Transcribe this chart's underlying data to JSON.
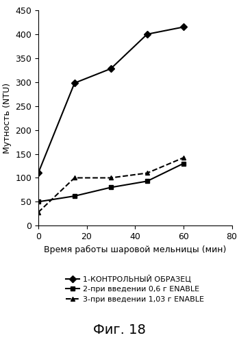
{
  "series": [
    {
      "label": "1-КОНТРОЛЬНЫЙ ОБРАЗЕЦ",
      "x": [
        0,
        15,
        30,
        45,
        60
      ],
      "y": [
        110,
        298,
        328,
        400,
        415
      ],
      "color": "#000000",
      "linestyle": "-",
      "marker": "D",
      "markersize": 5,
      "markerfacecolor": "#000000",
      "linewidth": 1.5
    },
    {
      "label": "2-при введении 0,6 г ENABLE",
      "x": [
        0,
        15,
        30,
        45,
        60
      ],
      "y": [
        50,
        62,
        80,
        93,
        130
      ],
      "color": "#000000",
      "linestyle": "-",
      "marker": "s",
      "markersize": 5,
      "markerfacecolor": "#000000",
      "linewidth": 1.5
    },
    {
      "label": "3-при введении 1,03 г ENABLE",
      "x": [
        0,
        15,
        30,
        45,
        60
      ],
      "y": [
        28,
        100,
        100,
        110,
        142
      ],
      "color": "#000000",
      "linestyle": "--",
      "marker": "^",
      "markersize": 5,
      "markerfacecolor": "#000000",
      "linewidth": 1.5
    }
  ],
  "xlabel": "Время работы шаровой мельницы (мин)",
  "ylabel": "Мутность (NTU)",
  "title": "Фиг. 18",
  "xlim": [
    0,
    80
  ],
  "ylim": [
    0,
    450
  ],
  "xticks": [
    0,
    20,
    40,
    60,
    80
  ],
  "yticks": [
    0,
    50,
    100,
    150,
    200,
    250,
    300,
    350,
    400,
    450
  ],
  "background_color": "#ffffff",
  "tick_fontsize": 9,
  "label_fontsize": 9,
  "legend_fontsize": 8,
  "title_fontsize": 14
}
